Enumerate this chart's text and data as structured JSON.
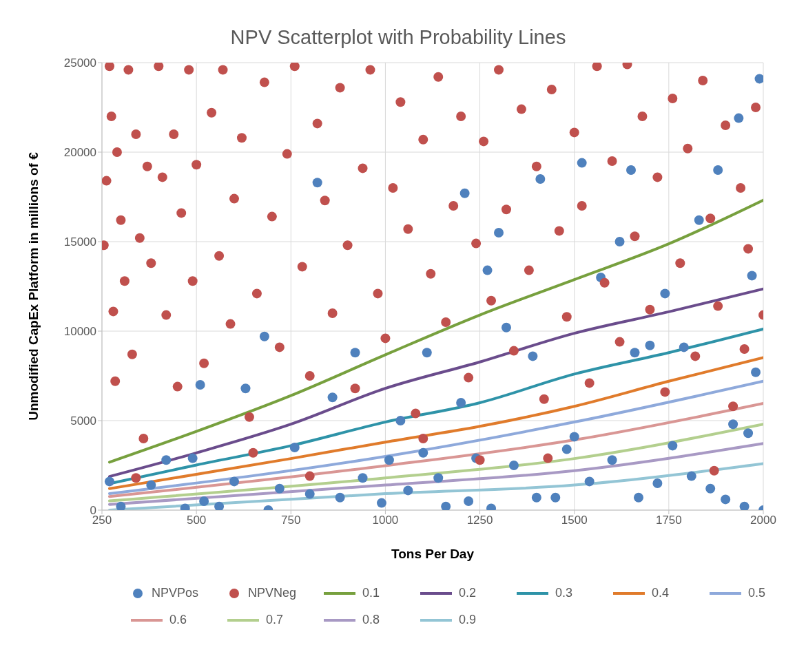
{
  "chart_data": {
    "type": "scatter",
    "title": "NPV Scatterplot with Probability Lines",
    "xlabel": "Tons Per Day",
    "ylabel": "Unmodified CapEx Platform in millions of €",
    "xlim": [
      250,
      2000
    ],
    "xticks": [
      250,
      500,
      750,
      1000,
      1250,
      1500,
      1750,
      2000
    ],
    "ylim": [
      0,
      25000
    ],
    "yticks": [
      0,
      5000,
      10000,
      15000,
      20000,
      25000
    ],
    "grid": true,
    "legend": "bottom",
    "series": [
      {
        "name": "NPVPos",
        "marker": "circle",
        "color": "#4f81bd",
        "x": [
          270,
          300,
          380,
          420,
          470,
          490,
          510,
          520,
          560,
          600,
          630,
          680,
          690,
          720,
          760,
          800,
          820,
          860,
          880,
          920,
          940,
          990,
          1010,
          1040,
          1060,
          1100,
          1110,
          1140,
          1160,
          1200,
          1210,
          1220,
          1240,
          1270,
          1280,
          1300,
          1320,
          1340,
          1390,
          1400,
          1410,
          1450,
          1480,
          1500,
          1520,
          1540,
          1570,
          1600,
          1620,
          1650,
          1660,
          1670,
          1700,
          1720,
          1740,
          1760,
          1790,
          1810,
          1830,
          1860,
          1880,
          1900,
          1920,
          1935,
          1950,
          1970,
          1980,
          1990,
          2000,
          1960
        ],
        "values": [
          1600,
          200,
          1400,
          2800,
          100,
          2900,
          7000,
          500,
          200,
          1600,
          6800,
          9700,
          0,
          1200,
          3500,
          900,
          18300,
          6300,
          700,
          8800,
          1800,
          400,
          2800,
          5000,
          1100,
          3200,
          8800,
          1800,
          200,
          6000,
          17700,
          500,
          2900,
          13400,
          100,
          15500,
          10200,
          2500,
          8600,
          700,
          18500,
          700,
          3400,
          4100,
          19400,
          1600,
          13000,
          2800,
          15000,
          19000,
          8800,
          700,
          9200,
          1500,
          12100,
          3600,
          9100,
          1900,
          16200,
          1200,
          19000,
          600,
          4800,
          21900,
          200,
          13100,
          7700,
          24100,
          0,
          4300
        ]
      },
      {
        "name": "NPVNeg",
        "marker": "circle",
        "color": "#c0504d",
        "x": [
          255,
          262,
          270,
          275,
          280,
          285,
          290,
          300,
          310,
          320,
          330,
          340,
          350,
          360,
          370,
          380,
          400,
          410,
          420,
          440,
          450,
          460,
          480,
          490,
          500,
          520,
          540,
          560,
          570,
          590,
          600,
          620,
          640,
          660,
          680,
          700,
          720,
          740,
          760,
          780,
          800,
          820,
          840,
          860,
          880,
          900,
          920,
          940,
          960,
          980,
          1000,
          1020,
          1040,
          1060,
          1080,
          1100,
          1120,
          1140,
          1160,
          1180,
          1200,
          1220,
          1240,
          1260,
          1280,
          1300,
          1320,
          1340,
          1360,
          1380,
          1400,
          1420,
          1440,
          1460,
          1480,
          1500,
          1520,
          1540,
          1560,
          1580,
          1600,
          1620,
          1640,
          1660,
          1680,
          1700,
          1720,
          1740,
          1760,
          1780,
          1800,
          1820,
          1840,
          1860,
          1880,
          1900,
          1920,
          1940,
          1960,
          1980,
          2000,
          1950,
          1250,
          1430,
          800,
          650,
          1100,
          340,
          1870
        ],
        "values": [
          14800,
          18400,
          24800,
          22000,
          11100,
          7200,
          20000,
          16200,
          12800,
          24600,
          8700,
          21000,
          15200,
          4000,
          19200,
          13800,
          24800,
          18600,
          10900,
          21000,
          6900,
          16600,
          24600,
          12800,
          19300,
          8200,
          22200,
          14200,
          24600,
          10400,
          17400,
          20800,
          5200,
          12100,
          23900,
          16400,
          9100,
          19900,
          24800,
          13600,
          7500,
          21600,
          17300,
          11000,
          23600,
          14800,
          6800,
          19100,
          24600,
          12100,
          9600,
          18000,
          22800,
          15700,
          5400,
          20700,
          13200,
          24200,
          10500,
          17000,
          22000,
          7400,
          14900,
          20600,
          11700,
          24600,
          16800,
          8900,
          22400,
          13400,
          19200,
          6200,
          23500,
          15600,
          10800,
          21100,
          17000,
          7100,
          24800,
          12700,
          19500,
          9400,
          24900,
          15300,
          22000,
          11200,
          18600,
          6600,
          23000,
          13800,
          20200,
          8600,
          24000,
          16300,
          11400,
          21500,
          5800,
          18000,
          14600,
          22500,
          10900,
          9000,
          2800,
          2900,
          1900,
          3200,
          4000,
          1800,
          2200
        ]
      },
      {
        "name": "0.1",
        "type": "line",
        "marker": "none",
        "color": "#77a03e",
        "x": [
          270,
          500,
          750,
          1000,
          1250,
          1500,
          1750,
          2000
        ],
        "values": [
          2680,
          4400,
          6400,
          8680,
          10900,
          12880,
          14880,
          17320
        ]
      },
      {
        "name": "0.2",
        "type": "line",
        "marker": "none",
        "color": "#6a4c8c",
        "x": [
          270,
          500,
          750,
          1000,
          1250,
          1500,
          1750,
          2000
        ],
        "values": [
          1880,
          3200,
          4800,
          6800,
          8280,
          9880,
          11080,
          12360
        ]
      },
      {
        "name": "0.3",
        "type": "line",
        "marker": "none",
        "color": "#2e93a8",
        "x": [
          270,
          500,
          750,
          1000,
          1250,
          1500,
          1750,
          2000
        ],
        "values": [
          1480,
          2520,
          3600,
          4920,
          6000,
          7600,
          8800,
          10120
        ]
      },
      {
        "name": "0.4",
        "type": "line",
        "marker": "none",
        "color": "#e07b2b",
        "x": [
          270,
          500,
          750,
          1000,
          1250,
          1500,
          1750,
          2000
        ],
        "values": [
          1200,
          2000,
          2880,
          3800,
          4680,
          5800,
          7200,
          8520
        ]
      },
      {
        "name": "0.5",
        "type": "line",
        "marker": "none",
        "color": "#8ea9db",
        "x": [
          270,
          1000,
          1500,
          2000
        ],
        "values": [
          920,
          3000,
          4920,
          7200
        ]
      },
      {
        "name": "0.6",
        "type": "line",
        "marker": "none",
        "color": "#d99694",
        "x": [
          270,
          1000,
          1500,
          2000
        ],
        "values": [
          760,
          2480,
          3920,
          5960
        ]
      },
      {
        "name": "0.7",
        "type": "line",
        "marker": "none",
        "color": "#b3cf8e",
        "x": [
          270,
          1000,
          1500,
          2000
        ],
        "values": [
          520,
          1800,
          2880,
          4800
        ]
      },
      {
        "name": "0.8",
        "type": "line",
        "marker": "none",
        "color": "#a899c4",
        "x": [
          270,
          1000,
          1500,
          2000
        ],
        "values": [
          320,
          1400,
          2200,
          3720
        ]
      },
      {
        "name": "0.9",
        "type": "line",
        "marker": "none",
        "color": "#93c5d5",
        "x": [
          270,
          1000,
          1500,
          2000
        ],
        "values": [
          0,
          920,
          1400,
          2600
        ]
      }
    ]
  }
}
